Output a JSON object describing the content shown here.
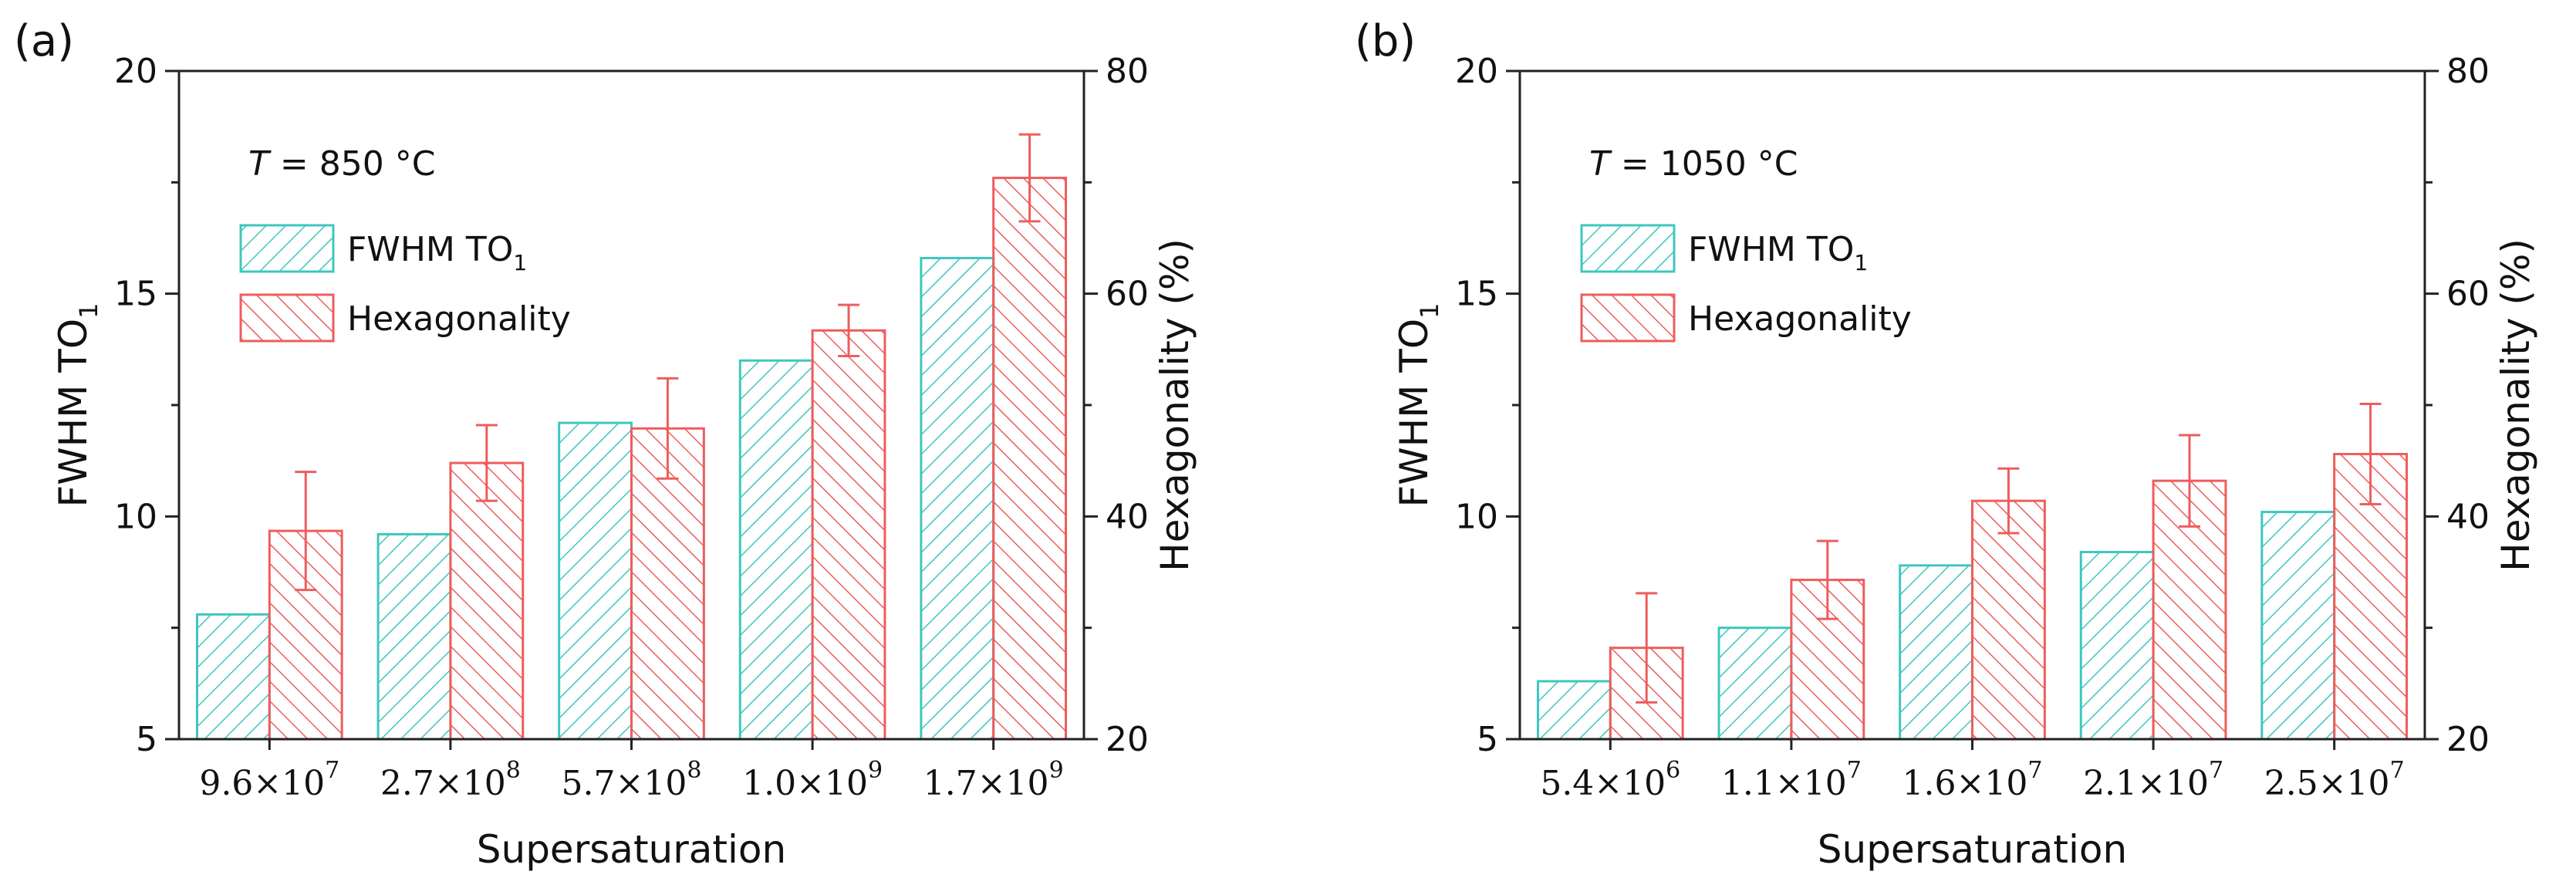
{
  "colors": {
    "fwhm": "#3ec7c0",
    "hex": "#ee5d5d",
    "axis": "#222222"
  },
  "chart_data": [
    {
      "type": "bar",
      "panel_label": "(a)",
      "annotation": {
        "symbol": "T",
        "rest": " = 850 °C"
      },
      "xlabel": "Supersaturation",
      "ylabel_left": {
        "main": "FWHM TO",
        "sub": "1"
      },
      "ylabel_right": "Hexagonality (%)",
      "ylim_left": [
        5,
        20
      ],
      "ylim_right": [
        20,
        80
      ],
      "yticks_left": [
        "5",
        "10",
        "15",
        "20"
      ],
      "yticks_right": [
        "20",
        "40",
        "60",
        "80"
      ],
      "categories": [
        {
          "mant": "9.6×10",
          "exp": "7"
        },
        {
          "mant": "2.7×10",
          "exp": "8"
        },
        {
          "mant": "5.7×10",
          "exp": "8"
        },
        {
          "mant": "1.0×10",
          "exp": "9"
        },
        {
          "mant": "1.7×10",
          "exp": "9"
        }
      ],
      "legend": [
        {
          "main": "FWHM TO",
          "sub": "1"
        },
        {
          "main": "Hexagonality",
          "sub": ""
        }
      ],
      "series": [
        {
          "name": "FWHM TO1",
          "axis": "left",
          "values": [
            7.8,
            9.6,
            12.1,
            13.5,
            15.8
          ]
        },
        {
          "name": "Hexagonality",
          "axis": "right",
          "values": [
            38.7,
            44.8,
            47.9,
            56.7,
            70.4
          ],
          "errors": [
            5.3,
            3.4,
            4.5,
            2.3,
            3.9
          ]
        }
      ]
    },
    {
      "type": "bar",
      "panel_label": "(b)",
      "annotation": {
        "symbol": "T",
        "rest": " = 1050 °C"
      },
      "xlabel": "Supersaturation",
      "ylabel_left": {
        "main": "FWHM TO",
        "sub": "1"
      },
      "ylabel_right": "Hexagonality (%)",
      "ylim_left": [
        5,
        20
      ],
      "ylim_right": [
        20,
        80
      ],
      "yticks_left": [
        "5",
        "10",
        "15",
        "20"
      ],
      "yticks_right": [
        "20",
        "40",
        "60",
        "80"
      ],
      "categories": [
        {
          "mant": "5.4×10",
          "exp": "6"
        },
        {
          "mant": "1.1×10",
          "exp": "7"
        },
        {
          "mant": "1.6×10",
          "exp": "7"
        },
        {
          "mant": "2.1×10",
          "exp": "7"
        },
        {
          "mant": "2.5×10",
          "exp": "7"
        }
      ],
      "legend": [
        {
          "main": "FWHM TO",
          "sub": "1"
        },
        {
          "main": "Hexagonality",
          "sub": ""
        }
      ],
      "series": [
        {
          "name": "FWHM TO1",
          "axis": "left",
          "values": [
            6.3,
            7.5,
            8.9,
            9.2,
            10.1
          ]
        },
        {
          "name": "Hexagonality",
          "axis": "right",
          "values": [
            28.2,
            34.3,
            41.4,
            43.2,
            45.6
          ],
          "errors": [
            4.9,
            3.5,
            2.9,
            4.1,
            4.5
          ]
        }
      ]
    }
  ]
}
